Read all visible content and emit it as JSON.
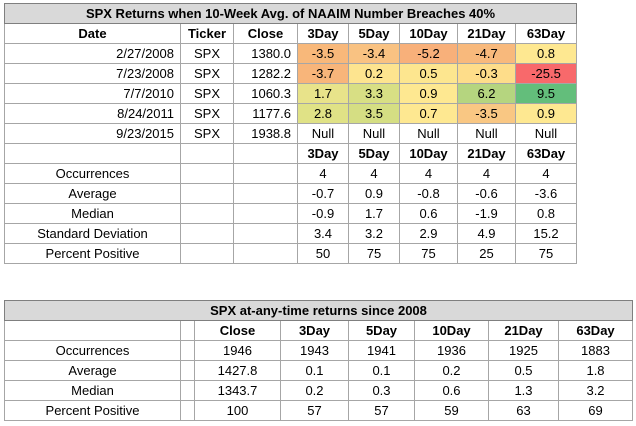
{
  "table1": {
    "title": "SPX Returns when 10-Week Avg. of NAAIM Number Breaches 40%",
    "headers": [
      "Date",
      "Ticker",
      "Close",
      "3Day",
      "5Day",
      "10Day",
      "21Day",
      "63Day"
    ],
    "rows": [
      {
        "date": "2/27/2008",
        "ticker": "SPX",
        "close": "1380.0",
        "vals": [
          "-3.5",
          "-3.4",
          "-5.2",
          "-4.7",
          "0.8"
        ]
      },
      {
        "date": "7/23/2008",
        "ticker": "SPX",
        "close": "1282.2",
        "vals": [
          "-3.7",
          "0.2",
          "0.5",
          "-0.3",
          "-25.5"
        ]
      },
      {
        "date": "7/7/2010",
        "ticker": "SPX",
        "close": "1060.3",
        "vals": [
          "1.7",
          "3.3",
          "0.9",
          "6.2",
          "9.5"
        ]
      },
      {
        "date": "8/24/2011",
        "ticker": "SPX",
        "close": "1177.6",
        "vals": [
          "2.8",
          "3.5",
          "0.7",
          "-3.5",
          "0.9"
        ]
      },
      {
        "date": "9/23/2015",
        "ticker": "SPX",
        "close": "1938.8",
        "vals": [
          "Null",
          "Null",
          "Null",
          "Null",
          "Null"
        ]
      }
    ],
    "colors": [
      [
        "#f8b87a",
        "#f9c282",
        "#f8b07a",
        "#f8b97c",
        "#fee891"
      ],
      [
        "#f8b57a",
        "#fde48f",
        "#fde68f",
        "#fedd8a",
        "#f8696b"
      ],
      [
        "#e8e38a",
        "#d8df84",
        "#fee891",
        "#b5d57f",
        "#63be7b"
      ],
      [
        "#e0e286",
        "#d5de83",
        "#fee891",
        "#f9c783",
        "#fee891"
      ],
      [
        "#ffffff",
        "#ffffff",
        "#ffffff",
        "#ffffff",
        "#ffffff"
      ]
    ],
    "stats_headers": [
      "3Day",
      "5Day",
      "10Day",
      "21Day",
      "63Day"
    ],
    "stats": [
      {
        "label": "Occurrences",
        "vals": [
          "4",
          "4",
          "4",
          "4",
          "4"
        ]
      },
      {
        "label": "Average",
        "vals": [
          "-0.7",
          "0.9",
          "-0.8",
          "-0.6",
          "-3.6"
        ]
      },
      {
        "label": "Median",
        "vals": [
          "-0.9",
          "1.7",
          "0.6",
          "-1.9",
          "0.8"
        ]
      },
      {
        "label": "Standard Deviation",
        "vals": [
          "3.4",
          "3.2",
          "2.9",
          "4.9",
          "15.2"
        ]
      },
      {
        "label": "Percent Positive",
        "vals": [
          "50",
          "75",
          "75",
          "25",
          "75"
        ]
      }
    ]
  },
  "table2": {
    "title": "SPX at-any-time returns since 2008",
    "headers": [
      "Close",
      "3Day",
      "5Day",
      "10Day",
      "21Day",
      "63Day"
    ],
    "rows": [
      {
        "label": "Occurrences",
        "vals": [
          "1946",
          "1943",
          "1941",
          "1936",
          "1925",
          "1883"
        ]
      },
      {
        "label": "Average",
        "vals": [
          "1427.8",
          "0.1",
          "0.1",
          "0.2",
          "0.5",
          "1.8"
        ]
      },
      {
        "label": "Median",
        "vals": [
          "1343.7",
          "0.2",
          "0.3",
          "0.6",
          "1.3",
          "3.2"
        ]
      },
      {
        "label": "Percent Positive",
        "vals": [
          "100",
          "57",
          "57",
          "59",
          "63",
          "69"
        ]
      }
    ]
  }
}
